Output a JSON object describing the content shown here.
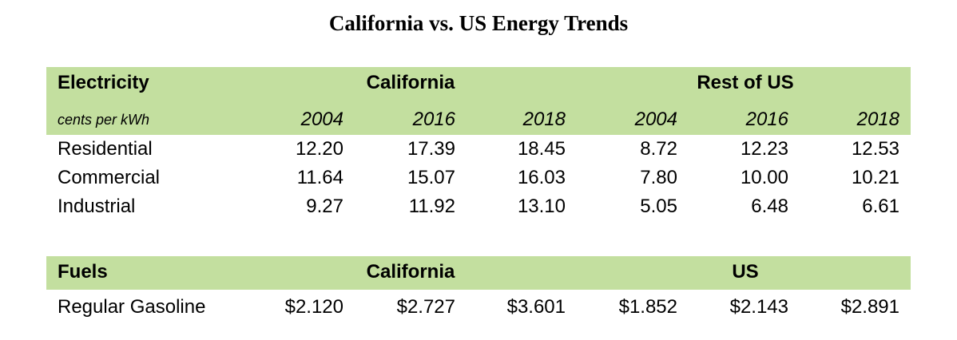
{
  "title": "California vs. US Energy Trends",
  "electricity": {
    "label": "Electricity",
    "groups": [
      "California",
      "Rest of US"
    ],
    "unit": "cents per kWh",
    "years": [
      "2004",
      "2016",
      "2018",
      "2004",
      "2016",
      "2018"
    ],
    "rows": [
      [
        "Residential",
        "12.20",
        "17.39",
        "18.45",
        "8.72",
        "12.23",
        "12.53"
      ],
      [
        "Commercial",
        "11.64",
        "15.07",
        "16.03",
        "7.80",
        "10.00",
        "10.21"
      ],
      [
        "Industrial",
        "9.27",
        "11.92",
        "13.10",
        "5.05",
        "6.48",
        "6.61"
      ]
    ]
  },
  "fuels": {
    "label": "Fuels",
    "groups": [
      "California",
      "US"
    ],
    "rows": [
      [
        "Regular Gasoline",
        "$2.120",
        "$2.727",
        "$3.601",
        "$1.852",
        "$2.143",
        "$2.891"
      ]
    ]
  }
}
